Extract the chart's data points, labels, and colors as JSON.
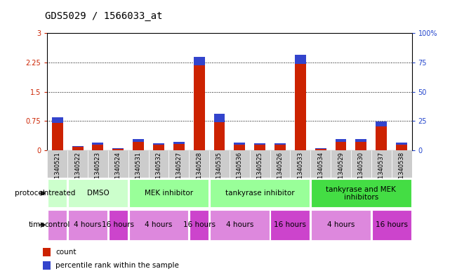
{
  "title": "GDS5029 / 1566033_at",
  "samples": [
    "GSM1340521",
    "GSM1340522",
    "GSM1340523",
    "GSM1340524",
    "GSM1340531",
    "GSM1340532",
    "GSM1340527",
    "GSM1340528",
    "GSM1340535",
    "GSM1340536",
    "GSM1340525",
    "GSM1340526",
    "GSM1340533",
    "GSM1340534",
    "GSM1340529",
    "GSM1340530",
    "GSM1340537",
    "GSM1340538"
  ],
  "count_values": [
    0.7,
    0.09,
    0.15,
    0.04,
    0.22,
    0.14,
    0.17,
    2.18,
    0.72,
    0.15,
    0.14,
    0.14,
    2.22,
    0.04,
    0.22,
    0.22,
    0.62,
    0.15
  ],
  "percentile_values": [
    0.14,
    0.03,
    0.05,
    0.015,
    0.07,
    0.05,
    0.05,
    0.22,
    0.22,
    0.05,
    0.05,
    0.05,
    0.22,
    0.015,
    0.07,
    0.07,
    0.12,
    0.05
  ],
  "ylim_left": [
    0,
    3
  ],
  "ylim_right": [
    0,
    100
  ],
  "yticks_left": [
    0,
    0.75,
    1.5,
    2.25,
    3
  ],
  "yticks_right": [
    0,
    25,
    50,
    75,
    100
  ],
  "count_color": "#cc2200",
  "percentile_color": "#3344cc",
  "background_color": "white",
  "left_axis_color": "#cc2200",
  "right_axis_color": "#2244cc",
  "protocol_groups": [
    {
      "label": "untreated",
      "start": 0,
      "end": 1,
      "color": "#ccffcc"
    },
    {
      "label": "DMSO",
      "start": 1,
      "end": 4,
      "color": "#ccffcc"
    },
    {
      "label": "MEK inhibitor",
      "start": 4,
      "end": 8,
      "color": "#99ff99"
    },
    {
      "label": "tankyrase inhibitor",
      "start": 8,
      "end": 13,
      "color": "#99ff99"
    },
    {
      "label": "tankyrase and MEK\ninhibitors",
      "start": 13,
      "end": 18,
      "color": "#44dd44"
    }
  ],
  "time_groups": [
    {
      "label": "control",
      "start": 0,
      "end": 1,
      "color": "#dd88dd"
    },
    {
      "label": "4 hours",
      "start": 1,
      "end": 3,
      "color": "#dd88dd"
    },
    {
      "label": "16 hours",
      "start": 3,
      "end": 4,
      "color": "#cc44cc"
    },
    {
      "label": "4 hours",
      "start": 4,
      "end": 7,
      "color": "#dd88dd"
    },
    {
      "label": "16 hours",
      "start": 7,
      "end": 8,
      "color": "#cc44cc"
    },
    {
      "label": "4 hours",
      "start": 8,
      "end": 11,
      "color": "#dd88dd"
    },
    {
      "label": "16 hours",
      "start": 11,
      "end": 13,
      "color": "#cc44cc"
    },
    {
      "label": "4 hours",
      "start": 13,
      "end": 16,
      "color": "#dd88dd"
    },
    {
      "label": "16 hours",
      "start": 16,
      "end": 18,
      "color": "#cc44cc"
    }
  ],
  "title_fontsize": 10,
  "tick_fontsize": 7,
  "sample_fontsize": 6,
  "label_fontsize": 7.5,
  "legend_fontsize": 7.5
}
